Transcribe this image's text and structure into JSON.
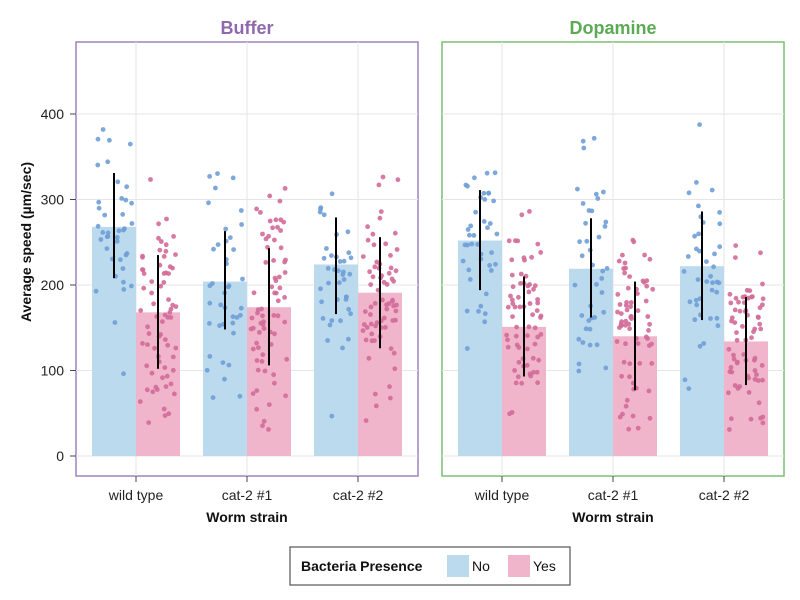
{
  "chart_data": {
    "type": "bar",
    "subtype": "grouped bar with jittered points and error bars, faceted",
    "ylabel": "Average speed (µm/sec)",
    "xlabel": "Worm strain",
    "ylim": [
      -25,
      490
    ],
    "yticks": [
      0,
      100,
      200,
      300,
      400
    ],
    "grid": true,
    "categories": [
      "wild type",
      "cat-2 #1",
      "cat-2 #2"
    ],
    "legend": {
      "title": "Bacteria Presence",
      "position": "bottom-center",
      "entries": [
        {
          "label": "No",
          "color": "#bcdaee"
        },
        {
          "label": "Yes",
          "color": "#f0b4cb"
        }
      ]
    },
    "colors": {
      "No_bar": "#bcdaee",
      "Yes_bar": "#f0b4cb",
      "No_point": "#6f9fd6",
      "Yes_point": "#d16b99",
      "error_bar": "#000000"
    },
    "panels": [
      {
        "title": "Buffer",
        "title_color": "#8f68ad",
        "frame_color": "#9f82bf",
        "series": [
          {
            "name": "No",
            "means": [
              268,
              204,
              224
            ],
            "err_low": [
              208,
              148,
              166
            ],
            "err_high": [
              331,
              263,
              279
            ]
          },
          {
            "name": "Yes",
            "means": [
              168,
              174,
              191
            ],
            "err_low": [
              102,
              106,
              126
            ],
            "err_high": [
              235,
              243,
              256
            ]
          }
        ]
      },
      {
        "title": "Dopamine",
        "title_color": "#5bab54",
        "frame_color": "#7cbf73",
        "series": [
          {
            "name": "No",
            "means": [
              252,
              219,
              222
            ],
            "err_low": [
              194,
              162,
              159
            ],
            "err_high": [
              311,
              278,
              286
            ]
          },
          {
            "name": "Yes",
            "means": [
              151,
              140,
              134
            ],
            "err_low": [
              93,
              77,
              83
            ],
            "err_high": [
              210,
              204,
              186
            ]
          }
        ]
      }
    ]
  }
}
